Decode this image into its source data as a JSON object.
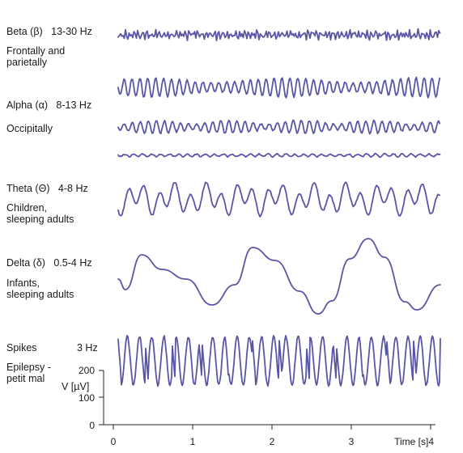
{
  "rows": [
    {
      "name": "Beta (β)",
      "freq": "13-30 Hz",
      "region": "Frontally and\nparietally"
    },
    {
      "name": "Alpha (α)",
      "freq": "8-13 Hz",
      "region": "Occipitally"
    },
    {
      "name": "Theta (Θ)",
      "freq": "4-8 Hz",
      "region": "Children,\nsleeping adults"
    },
    {
      "name": "Delta (δ)",
      "freq": "0.5-4 Hz",
      "region": "Infants,\nsleeping adults"
    },
    {
      "name": "Spikes",
      "freq": "3 Hz",
      "region": "Epilepsy -\npetit mal"
    }
  ],
  "axis": {
    "y_label": "V [µV]",
    "y_ticks": [
      "0",
      "100",
      "200"
    ],
    "x_ticks": [
      "0",
      "1",
      "2",
      "3"
    ],
    "x_last": "Time [s]4"
  },
  "trace_color": "#5a56a6",
  "chart_data": {
    "type": "line",
    "xlabel": "Time [s]",
    "ylabel": "V [µV]",
    "xlim": [
      0,
      4
    ],
    "ylim": [
      0,
      200
    ],
    "series": [
      {
        "name": "Beta (β)",
        "frequency_hz": 20,
        "amplitude_uv": 12
      },
      {
        "name": "Alpha (α)",
        "frequency_hz": 10,
        "amplitude_uv": 45
      },
      {
        "name": "Alpha (α)",
        "frequency_hz": 10,
        "amplitude_uv": 30
      },
      {
        "name": "Alpha (α)",
        "frequency_hz": 10,
        "amplitude_uv": 8
      },
      {
        "name": "Theta (Θ)",
        "frequency_hz": 6,
        "amplitude_uv": 80
      },
      {
        "name": "Delta (δ)",
        "frequency_hz": 1,
        "amplitude_uv": 180
      },
      {
        "name": "Spikes",
        "frequency_hz": 3,
        "amplitude_uv": 200
      }
    ]
  }
}
